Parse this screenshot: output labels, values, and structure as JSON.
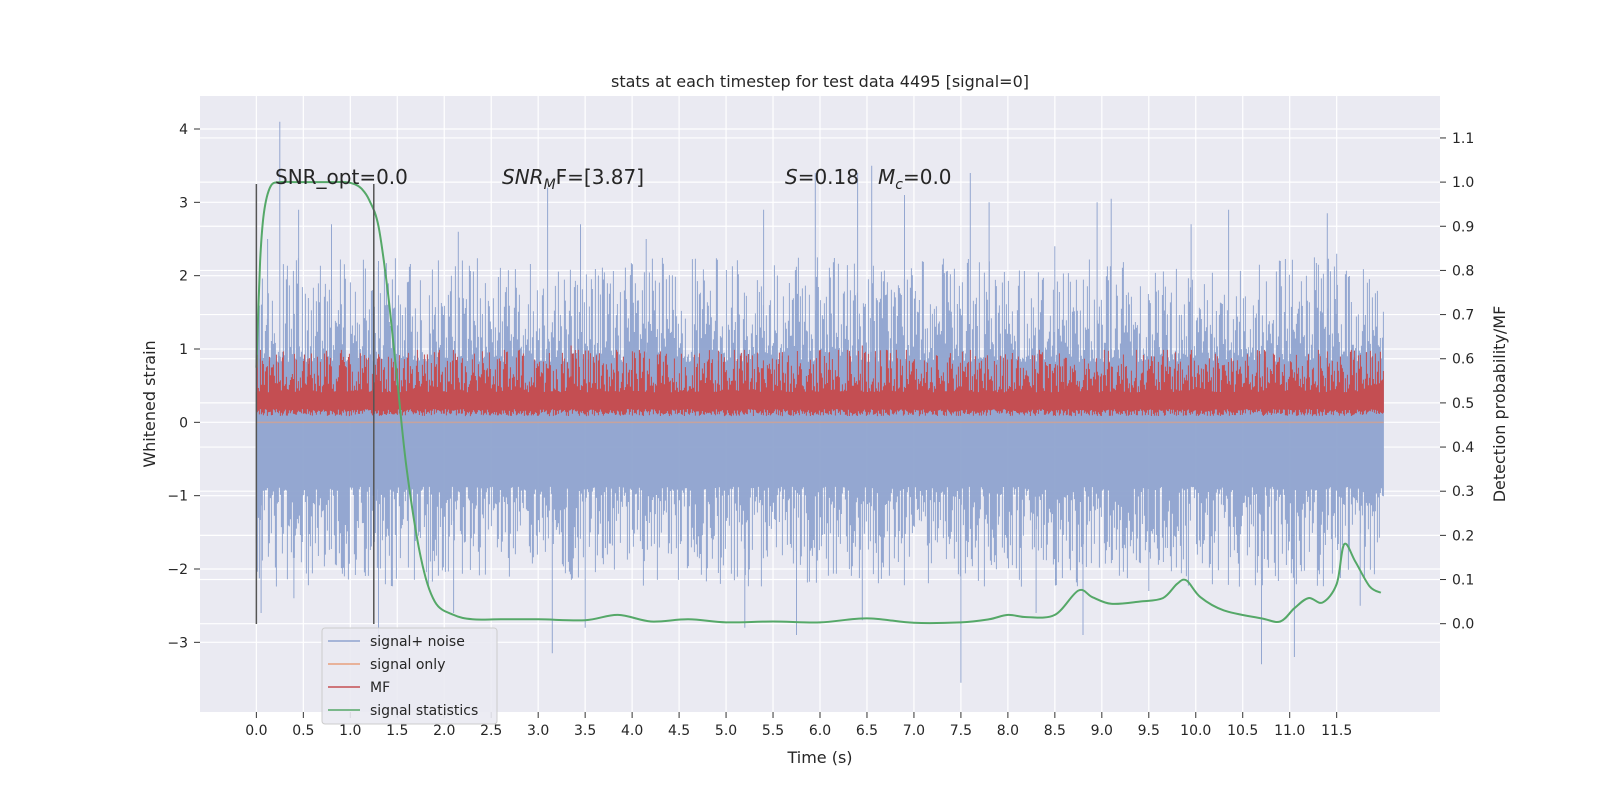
{
  "chart_data": {
    "type": "line",
    "title": "stats at each timestep for test data 4495 [signal=0]",
    "xlabel": "Time (s)",
    "ylabel": "Whitened strain",
    "y2label": "Detection probability/MF",
    "xlim": [
      -0.6,
      12.6
    ],
    "ylim": [
      -3.95,
      4.45
    ],
    "y2lim": [
      -0.2,
      1.195
    ],
    "xticks": [
      0.0,
      0.5,
      1.0,
      1.5,
      2.0,
      2.5,
      3.0,
      3.5,
      4.0,
      4.5,
      5.0,
      5.5,
      6.0,
      6.5,
      7.0,
      7.5,
      8.0,
      8.5,
      9.0,
      9.5,
      10.0,
      10.5,
      11.0,
      11.5
    ],
    "xtick_labels": [
      "0.0",
      "0.5",
      "1.0",
      "1.5",
      "2.0",
      "2.5",
      "3.0",
      "3.5",
      "4.0",
      "4.5",
      "5.0",
      "5.5",
      "6.0",
      "6.5",
      "7.0",
      "7.5",
      "8.0",
      "8.5",
      "9.0",
      "9.5",
      "10.0",
      "10.5",
      "11.0",
      "11.5"
    ],
    "yticks": [
      -3,
      -2,
      -1,
      0,
      1,
      2,
      3,
      4
    ],
    "ytick_labels": [
      "−3",
      "−2",
      "−1",
      "0",
      "1",
      "2",
      "3",
      "4"
    ],
    "y2ticks": [
      0.0,
      0.1,
      0.2,
      0.3,
      0.4,
      0.5,
      0.6,
      0.7,
      0.8,
      0.9,
      1.0,
      1.1
    ],
    "y2tick_labels": [
      "0.0",
      "0.1",
      "0.2",
      "0.3",
      "0.4",
      "0.5",
      "0.6",
      "0.7",
      "0.8",
      "0.9",
      "1.0",
      "1.1"
    ],
    "grid": true,
    "legend": {
      "position": "lower-left",
      "entries": [
        {
          "label": "signal+ noise",
          "color": "#8fa3cf"
        },
        {
          "label": "signal only",
          "color": "#e8a07c"
        },
        {
          "label": "MF",
          "color": "#c44e52"
        },
        {
          "label": "signal statistics",
          "color": "#55a868"
        }
      ]
    },
    "annotations": {
      "snr_opt": "SNR_opt=0.0",
      "snr_mf_sym": "SNR",
      "snr_mf_sub": "M",
      "snr_mf_rest": "F=[3.87]",
      "s_sym": "S",
      "s_rest": "=0.18",
      "mc_sym": "M",
      "mc_sub": "c",
      "mc_rest": "=0.0"
    },
    "vlines": [
      0.0,
      1.25
    ],
    "series": [
      {
        "name": "signal+ noise",
        "axis": "left",
        "color": "#8fa3cf",
        "x_range": [
          0.0,
          12.0
        ],
        "band": [
          -1.6,
          1.5
        ],
        "peaks": [
          [
            0.25,
            4.1
          ],
          [
            0.12,
            2.5
          ],
          [
            0.45,
            2.9
          ],
          [
            0.8,
            2.7
          ],
          [
            1.3,
            2.2
          ],
          [
            2.15,
            2.6
          ],
          [
            3.1,
            3.2
          ],
          [
            3.45,
            2.7
          ],
          [
            4.15,
            2.5
          ],
          [
            5.4,
            2.9
          ],
          [
            5.95,
            3.4
          ],
          [
            6.4,
            3.4
          ],
          [
            6.55,
            3.5
          ],
          [
            6.9,
            3.1
          ],
          [
            7.6,
            3.4
          ],
          [
            7.8,
            3.0
          ],
          [
            8.5,
            2.4
          ],
          [
            8.95,
            3.0
          ],
          [
            9.1,
            3.05
          ],
          [
            9.95,
            2.7
          ],
          [
            10.35,
            2.9
          ],
          [
            10.9,
            2.2
          ],
          [
            11.4,
            2.85
          ],
          [
            11.5,
            2.3
          ],
          [
            0.05,
            -2.6
          ],
          [
            0.4,
            -2.4
          ],
          [
            1.3,
            -3.1
          ],
          [
            2.1,
            -2.6
          ],
          [
            3.15,
            -3.15
          ],
          [
            3.5,
            -2.8
          ],
          [
            5.2,
            -2.8
          ],
          [
            5.75,
            -2.9
          ],
          [
            6.45,
            -2.7
          ],
          [
            7.5,
            -3.55
          ],
          [
            8.3,
            -2.6
          ],
          [
            8.8,
            -2.9
          ],
          [
            9.5,
            -2.3
          ],
          [
            10.7,
            -3.3
          ],
          [
            11.05,
            -3.2
          ],
          [
            11.75,
            -2.5
          ]
        ]
      },
      {
        "name": "signal only",
        "axis": "left",
        "color": "#e8a07c",
        "x": [
          0.0,
          12.0
        ],
        "y": [
          0.0,
          0.0
        ]
      },
      {
        "name": "MF",
        "axis": "right",
        "color": "#c44e52",
        "x_range": [
          0.0,
          12.0
        ],
        "band": [
          0.48,
          0.59
        ],
        "spread": [
          0.49,
          0.62
        ],
        "peaks": [
          [
            0.55,
            0.6
          ],
          [
            1.3,
            0.61
          ],
          [
            1.95,
            0.62
          ],
          [
            3.35,
            0.63
          ],
          [
            6.45,
            0.63
          ],
          [
            8.6,
            0.6
          ],
          [
            11.2,
            0.61
          ]
        ]
      },
      {
        "name": "signal statistics",
        "axis": "right",
        "color": "#55a868",
        "x": [
          0.0,
          0.04,
          0.08,
          0.15,
          0.25,
          0.4,
          0.6,
          0.8,
          0.95,
          1.05,
          1.12,
          1.2,
          1.3,
          1.4,
          1.5,
          1.6,
          1.75,
          1.9,
          2.1,
          2.3,
          2.6,
          3.0,
          3.5,
          3.85,
          4.2,
          4.6,
          5.0,
          5.5,
          6.0,
          6.5,
          7.0,
          7.5,
          7.8,
          8.0,
          8.2,
          8.5,
          8.75,
          8.9,
          9.1,
          9.4,
          9.65,
          9.8,
          9.9,
          10.05,
          10.3,
          10.7,
          10.9,
          11.05,
          11.2,
          11.35,
          11.5,
          11.58,
          11.7,
          11.85,
          11.97
        ],
        "y": [
          0.58,
          0.82,
          0.93,
          0.99,
          1.0,
          1.0,
          1.0,
          1.0,
          1.0,
          0.995,
          0.985,
          0.96,
          0.9,
          0.75,
          0.55,
          0.35,
          0.15,
          0.05,
          0.02,
          0.01,
          0.01,
          0.01,
          0.008,
          0.02,
          0.005,
          0.01,
          0.003,
          0.005,
          0.003,
          0.012,
          0.002,
          0.003,
          0.01,
          0.02,
          0.015,
          0.02,
          0.075,
          0.06,
          0.045,
          0.05,
          0.058,
          0.09,
          0.098,
          0.06,
          0.03,
          0.012,
          0.005,
          0.035,
          0.058,
          0.048,
          0.09,
          0.18,
          0.14,
          0.085,
          0.07
        ]
      }
    ]
  }
}
